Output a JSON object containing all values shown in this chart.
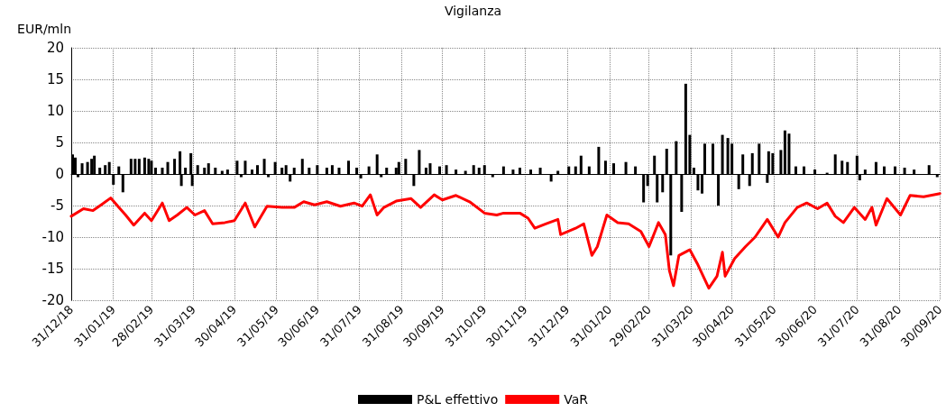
{
  "chart_data": {
    "type": "bar",
    "title": "Vigilanza",
    "ylabel": "EUR/mln",
    "xlim": [
      "2018-12-31",
      "2020-09-30"
    ],
    "xticks": [
      {
        "value": "2018-12-31",
        "label": "31/12/18"
      },
      {
        "value": "2019-01-31",
        "label": "31/01/19"
      },
      {
        "value": "2019-02-28",
        "label": "28/02/19"
      },
      {
        "value": "2019-03-31",
        "label": "31/03/19"
      },
      {
        "value": "2019-04-30",
        "label": "30/04/19"
      },
      {
        "value": "2019-05-31",
        "label": "31/05/19"
      },
      {
        "value": "2019-06-30",
        "label": "30/06/19"
      },
      {
        "value": "2019-07-31",
        "label": "31/07/19"
      },
      {
        "value": "2019-08-31",
        "label": "31/08/19"
      },
      {
        "value": "2019-09-30",
        "label": "30/09/19"
      },
      {
        "value": "2019-10-31",
        "label": "31/10/19"
      },
      {
        "value": "2019-11-30",
        "label": "30/11/19"
      },
      {
        "value": "2019-12-31",
        "label": "31/12/19"
      },
      {
        "value": "2020-01-31",
        "label": "31/01/20"
      },
      {
        "value": "2020-02-29",
        "label": "29/02/20"
      },
      {
        "value": "2020-03-31",
        "label": "31/03/20"
      },
      {
        "value": "2020-04-30",
        "label": "30/04/20"
      },
      {
        "value": "2020-05-31",
        "label": "31/05/20"
      },
      {
        "value": "2020-06-30",
        "label": "30/06/20"
      },
      {
        "value": "2020-07-31",
        "label": "31/07/20"
      },
      {
        "value": "2020-08-31",
        "label": "31/08/20"
      },
      {
        "value": "2020-09-30",
        "label": "30/09/20"
      }
    ],
    "ylim": [
      -20,
      20
    ],
    "yticks": [
      -20,
      -15,
      -10,
      -5,
      0,
      5,
      10,
      15,
      20
    ],
    "grid": true,
    "legend": "bottom",
    "series": [
      {
        "name": "P&L effettivo",
        "color": "#000000",
        "x": [
          "2019-01-01",
          "2019-01-03",
          "2019-01-05",
          "2019-01-08",
          "2019-01-12",
          "2019-01-15",
          "2019-01-17",
          "2019-01-21",
          "2019-01-25",
          "2019-01-28",
          "2019-01-31",
          "2019-02-04",
          "2019-02-07",
          "2019-02-13",
          "2019-02-16",
          "2019-02-19",
          "2019-02-23",
          "2019-02-26",
          "2019-02-28",
          "2019-03-03",
          "2019-03-08",
          "2019-03-12",
          "2019-03-17",
          "2019-03-21",
          "2019-03-22",
          "2019-03-25",
          "2019-03-29",
          "2019-03-30",
          "2019-04-03",
          "2019-04-08",
          "2019-04-11",
          "2019-04-16",
          "2019-04-21",
          "2019-04-25",
          "2019-05-02",
          "2019-05-05",
          "2019-05-08",
          "2019-05-13",
          "2019-05-17",
          "2019-05-22",
          "2019-05-25",
          "2019-05-30",
          "2019-06-04",
          "2019-06-07",
          "2019-06-10",
          "2019-06-13",
          "2019-06-19",
          "2019-06-24",
          "2019-06-30",
          "2019-07-07",
          "2019-07-11",
          "2019-07-16",
          "2019-07-23",
          "2019-07-29",
          "2019-08-01",
          "2019-08-07",
          "2019-08-13",
          "2019-08-16",
          "2019-08-20",
          "2019-08-27",
          "2019-08-29",
          "2019-09-03",
          "2019-09-09",
          "2019-09-13",
          "2019-09-18",
          "2019-09-21",
          "2019-09-28",
          "2019-10-03",
          "2019-10-10",
          "2019-10-17",
          "2019-10-23",
          "2019-10-27",
          "2019-10-31",
          "2019-11-06",
          "2019-11-14",
          "2019-11-21",
          "2019-11-26",
          "2019-12-04",
          "2019-12-11",
          "2019-12-19",
          "2019-12-24",
          "2020-01-01",
          "2020-01-06",
          "2020-01-10",
          "2020-01-16",
          "2020-01-23",
          "2020-01-28",
          "2020-02-03",
          "2020-02-12",
          "2020-02-19",
          "2020-02-25",
          "2020-02-28",
          "2020-03-04",
          "2020-03-06",
          "2020-03-10",
          "2020-03-13",
          "2020-03-16",
          "2020-03-20",
          "2020-03-24",
          "2020-03-27",
          "2020-03-30",
          "2020-04-02",
          "2020-04-05",
          "2020-04-08",
          "2020-04-10",
          "2020-04-16",
          "2020-04-20",
          "2020-04-23",
          "2020-04-27",
          "2020-04-30",
          "2020-05-05",
          "2020-05-08",
          "2020-05-13",
          "2020-05-15",
          "2020-05-20",
          "2020-05-26",
          "2020-05-27",
          "2020-05-30",
          "2020-06-05",
          "2020-06-08",
          "2020-06-11",
          "2020-06-16",
          "2020-06-22",
          "2020-06-30",
          "2020-07-09",
          "2020-07-15",
          "2020-07-20",
          "2020-07-24",
          "2020-07-31",
          "2020-08-02",
          "2020-08-06",
          "2020-08-14",
          "2020-08-20",
          "2020-08-28",
          "2020-09-04",
          "2020-09-11",
          "2020-09-22",
          "2020-09-28"
        ],
        "values": [
          3.1,
          2.6,
          -0.5,
          1.7,
          1.9,
          2.4,
          2.9,
          1,
          1.4,
          1.9,
          -1.7,
          1.2,
          -2.9,
          2.4,
          2.4,
          2.4,
          2.6,
          2.4,
          2.1,
          1,
          1,
          1.9,
          2.4,
          3.6,
          -1.9,
          1,
          3.3,
          -1.9,
          1.4,
          1,
          1.7,
          1,
          0.5,
          0.7,
          2.1,
          -0.5,
          2.1,
          0.7,
          1.4,
          2.4,
          -0.5,
          1.9,
          1,
          1.4,
          -1.2,
          1,
          2.4,
          1,
          1.4,
          1,
          1.4,
          1,
          2.1,
          1,
          -0.7,
          1.2,
          3.1,
          -0.5,
          1,
          1,
          1.9,
          2.4,
          -1.9,
          3.8,
          1,
          1.7,
          1.2,
          1.4,
          0.7,
          0.5,
          1.4,
          1,
          1.4,
          -0.5,
          1.2,
          0.7,
          1,
          0.7,
          1,
          -1.2,
          0.5,
          1.2,
          1.2,
          2.9,
          1.2,
          4.3,
          2.1,
          1.7,
          1.9,
          1.2,
          -4.5,
          -1.9,
          2.9,
          -4.5,
          -2.9,
          4,
          -12.9,
          5.2,
          -6,
          14.3,
          6.2,
          1,
          -2.6,
          -3.1,
          4.8,
          4.8,
          -5,
          6.2,
          5.7,
          4.8,
          -2.4,
          3.1,
          -1.9,
          3.3,
          4.8,
          -1.4,
          3.6,
          3.3,
          3.8,
          6.9,
          6.4,
          1.2,
          1.2,
          0.7,
          0.2,
          3.1,
          2.1,
          1.9,
          2.9,
          -1,
          0.7,
          1.9,
          1.2,
          1.2,
          1,
          0.7,
          1.4,
          -0.5
        ]
      },
      {
        "name": "VaR",
        "type": "line",
        "color": "#ff0000",
        "line_style": "solid",
        "marker": "none",
        "x": [
          "2018-12-31",
          "2019-01-09",
          "2019-01-16",
          "2019-01-22",
          "2019-01-29",
          "2019-02-04",
          "2019-02-09",
          "2019-02-15",
          "2019-02-23",
          "2019-02-28",
          "2019-03-08",
          "2019-03-13",
          "2019-03-19",
          "2019-03-26",
          "2019-04-01",
          "2019-04-08",
          "2019-04-14",
          "2019-04-23",
          "2019-04-30",
          "2019-05-08",
          "2019-05-15",
          "2019-05-24",
          "2019-06-04",
          "2019-06-13",
          "2019-06-20",
          "2019-06-28",
          "2019-07-07",
          "2019-07-17",
          "2019-07-27",
          "2019-08-02",
          "2019-08-08",
          "2019-08-13",
          "2019-08-18",
          "2019-08-27",
          "2019-09-07",
          "2019-09-14",
          "2019-09-24",
          "2019-09-30",
          "2019-10-10",
          "2019-10-20",
          "2019-10-31",
          "2019-11-09",
          "2019-11-14",
          "2019-11-26",
          "2019-12-02",
          "2019-12-07",
          "2019-12-15",
          "2019-12-24",
          "2019-12-26",
          "2020-01-06",
          "2020-01-12",
          "2020-01-18",
          "2020-01-22",
          "2020-01-29",
          "2020-02-06",
          "2020-02-14",
          "2020-02-23",
          "2020-02-29",
          "2020-03-07",
          "2020-03-12",
          "2020-03-15",
          "2020-03-18",
          "2020-03-22",
          "2020-03-30",
          "2020-04-05",
          "2020-04-13",
          "2020-04-19",
          "2020-04-23",
          "2020-04-25",
          "2020-05-02",
          "2020-05-10",
          "2020-05-17",
          "2020-05-26",
          "2020-06-03",
          "2020-06-08",
          "2020-06-17",
          "2020-06-24",
          "2020-07-02",
          "2020-07-09",
          "2020-07-15",
          "2020-07-21",
          "2020-07-29",
          "2020-08-06",
          "2020-08-11",
          "2020-08-14",
          "2020-08-22",
          "2020-09-01",
          "2020-09-08",
          "2020-09-18",
          "2020-09-30"
        ],
        "values": [
          -6.7,
          -5.5,
          -5.8,
          -4.9,
          -3.8,
          -5.3,
          -6.5,
          -8.1,
          -6.2,
          -7.4,
          -4.6,
          -7.4,
          -6.5,
          -5.3,
          -6.5,
          -5.8,
          -7.9,
          -7.7,
          -7.4,
          -4.6,
          -8.4,
          -5.1,
          -5.3,
          -5.3,
          -4.4,
          -4.9,
          -4.4,
          -5.1,
          -4.6,
          -5.1,
          -3.3,
          -6.5,
          -5.3,
          -4.3,
          -3.9,
          -5.3,
          -3.3,
          -4.1,
          -3.4,
          -4.4,
          -6.2,
          -6.5,
          -6.2,
          -6.2,
          -7,
          -8.6,
          -7.9,
          -7.2,
          -9.6,
          -8.6,
          -7.9,
          -12.9,
          -11.5,
          -6.5,
          -7.7,
          -7.9,
          -9.1,
          -11.5,
          -7.7,
          -9.6,
          -15.3,
          -17.7,
          -12.9,
          -12,
          -14.4,
          -18.1,
          -16.2,
          -12.4,
          -16.2,
          -13.4,
          -11.5,
          -10,
          -7.2,
          -10,
          -7.7,
          -5.3,
          -4.6,
          -5.5,
          -4.6,
          -6.7,
          -7.7,
          -5.3,
          -7.2,
          -5.3,
          -8.1,
          -3.9,
          -6.5,
          -3.4,
          -3.6,
          -3.1
        ]
      }
    ]
  }
}
